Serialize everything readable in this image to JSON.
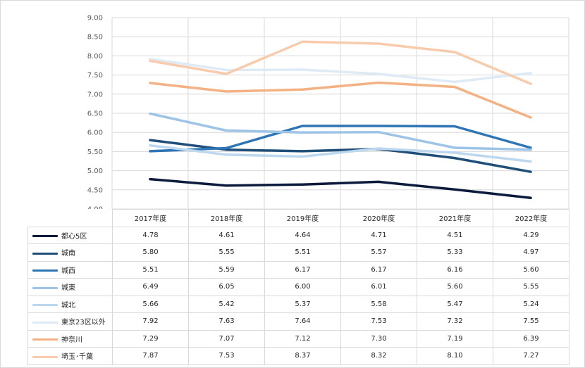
{
  "chart_data": {
    "type": "line",
    "categories": [
      "2017年度",
      "2018年度",
      "2019年度",
      "2020年度",
      "2021年度",
      "2022年度"
    ],
    "ylim": [
      4.0,
      9.0
    ],
    "yticks": [
      "4.00",
      "4.50",
      "5.00",
      "5.50",
      "6.00",
      "6.50",
      "7.00",
      "7.50",
      "8.00",
      "8.50",
      "9.00"
    ],
    "grid": true,
    "legend": "data-table",
    "series": [
      {
        "name": "都心5区",
        "color": "#0c1a3c",
        "values": [
          4.78,
          4.61,
          4.64,
          4.71,
          4.51,
          4.29
        ],
        "labels": [
          "4.78",
          "4.61",
          "4.64",
          "4.71",
          "4.51",
          "4.29"
        ]
      },
      {
        "name": "城南",
        "color": "#1f4e79",
        "values": [
          5.8,
          5.55,
          5.51,
          5.57,
          5.33,
          4.97
        ],
        "labels": [
          "5.80",
          "5.55",
          "5.51",
          "5.57",
          "5.33",
          "4.97"
        ]
      },
      {
        "name": "城西",
        "color": "#2e75b6",
        "values": [
          5.51,
          5.59,
          6.17,
          6.17,
          6.16,
          5.6
        ],
        "labels": [
          "5.51",
          "5.59",
          "6.17",
          "6.17",
          "6.16",
          "5.60"
        ]
      },
      {
        "name": "城東",
        "color": "#9dc3e6",
        "values": [
          6.49,
          6.05,
          6.0,
          6.01,
          5.6,
          5.55
        ],
        "labels": [
          "6.49",
          "6.05",
          "6.00",
          "6.01",
          "5.60",
          "5.55"
        ]
      },
      {
        "name": "城北",
        "color": "#bdd7ee",
        "values": [
          5.66,
          5.42,
          5.37,
          5.58,
          5.47,
          5.24
        ],
        "labels": [
          "5.66",
          "5.42",
          "5.37",
          "5.58",
          "5.47",
          "5.24"
        ]
      },
      {
        "name": "東京23区以外",
        "color": "#deebf7",
        "values": [
          7.92,
          7.63,
          7.64,
          7.53,
          7.32,
          7.55
        ],
        "labels": [
          "7.92",
          "7.63",
          "7.64",
          "7.53",
          "7.32",
          "7.55"
        ]
      },
      {
        "name": "神奈川",
        "color": "#f4b183",
        "values": [
          7.29,
          7.07,
          7.12,
          7.3,
          7.19,
          6.39
        ],
        "labels": [
          "7.29",
          "7.07",
          "7.12",
          "7.30",
          "7.19",
          "6.39"
        ]
      },
      {
        "name": "埼玉･千葉",
        "color": "#f8cbad",
        "values": [
          7.87,
          7.53,
          8.37,
          8.32,
          8.1,
          7.27
        ],
        "labels": [
          "7.87",
          "7.53",
          "8.37",
          "8.32",
          "8.10",
          "7.27"
        ]
      }
    ]
  }
}
